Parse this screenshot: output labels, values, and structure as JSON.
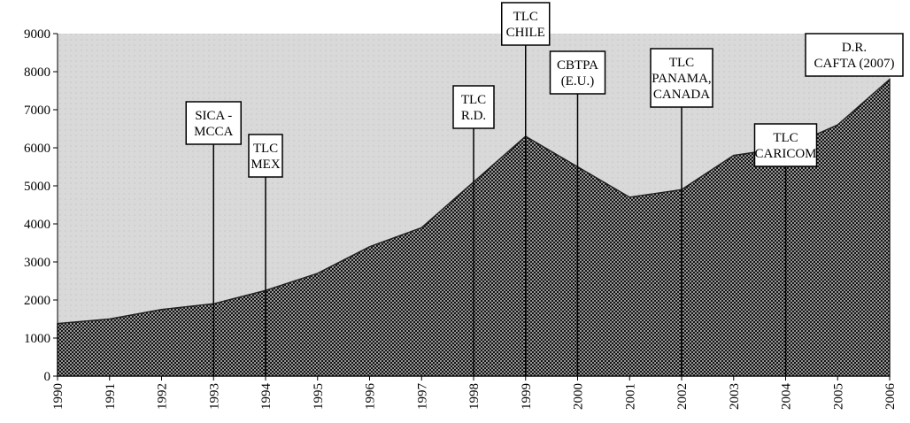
{
  "chart_data": {
    "type": "area",
    "x": [
      1990,
      1991,
      1992,
      1993,
      1994,
      1995,
      1996,
      1997,
      1998,
      1999,
      2000,
      2001,
      2002,
      2003,
      2004,
      2005,
      2006
    ],
    "values": [
      1380,
      1500,
      1750,
      1900,
      2250,
      2700,
      3400,
      3900,
      5100,
      6300,
      5500,
      4700,
      4900,
      5800,
      6000,
      6600,
      7800
    ],
    "xlim": [
      1990,
      2006
    ],
    "ylim": [
      0,
      9000
    ],
    "yticks": [
      0,
      1000,
      2000,
      3000,
      4000,
      5000,
      6000,
      7000,
      8000,
      9000
    ],
    "color": "#222222",
    "annotations": [
      {
        "x": 1993,
        "lines": [
          "SICA -",
          "MCCA"
        ]
      },
      {
        "x": 1994,
        "lines": [
          "TLC",
          "MEX"
        ]
      },
      {
        "x": 1998,
        "lines": [
          "TLC",
          "R.D."
        ]
      },
      {
        "x": 1999,
        "lines": [
          "TLC",
          "CHILE"
        ]
      },
      {
        "x": 2000,
        "lines": [
          "CBTPA",
          "(E.U.)"
        ]
      },
      {
        "x": 2002,
        "lines": [
          "TLC",
          "PANAMA,",
          "CANADA"
        ]
      },
      {
        "x": 2004,
        "lines": [
          "TLC",
          "CARICOM"
        ]
      },
      {
        "lines": [
          "D.R.",
          "CAFTA (2007)"
        ]
      }
    ]
  }
}
